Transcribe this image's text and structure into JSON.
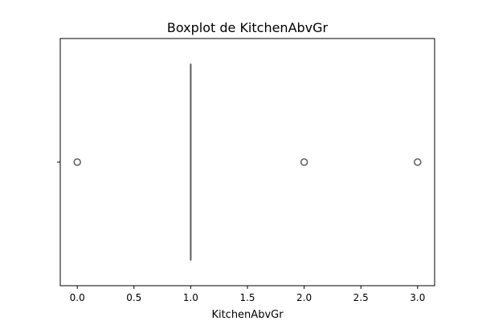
{
  "chart_data": {
    "type": "boxplot",
    "orientation": "horizontal",
    "title": "Boxplot de KitchenAbvGr",
    "xlabel": "KitchenAbvGr",
    "ylabel": "",
    "xlim": [
      -0.15,
      3.15
    ],
    "x_ticks": [
      0.0,
      0.5,
      1.0,
      1.5,
      2.0,
      2.5,
      3.0
    ],
    "x_tick_labels": [
      "0.0",
      "0.5",
      "1.0",
      "1.5",
      "2.0",
      "2.5",
      "3.0"
    ],
    "grid": false,
    "legend": "none",
    "box": {
      "q1": 1.0,
      "median": 1.0,
      "q3": 1.0,
      "whisker_low": 1.0,
      "whisker_high": 1.0
    },
    "outliers": [
      0.0,
      2.0,
      3.0
    ],
    "colors": {
      "box": "#5d5d5d",
      "outlier_edge": "#5d5d5d"
    }
  }
}
